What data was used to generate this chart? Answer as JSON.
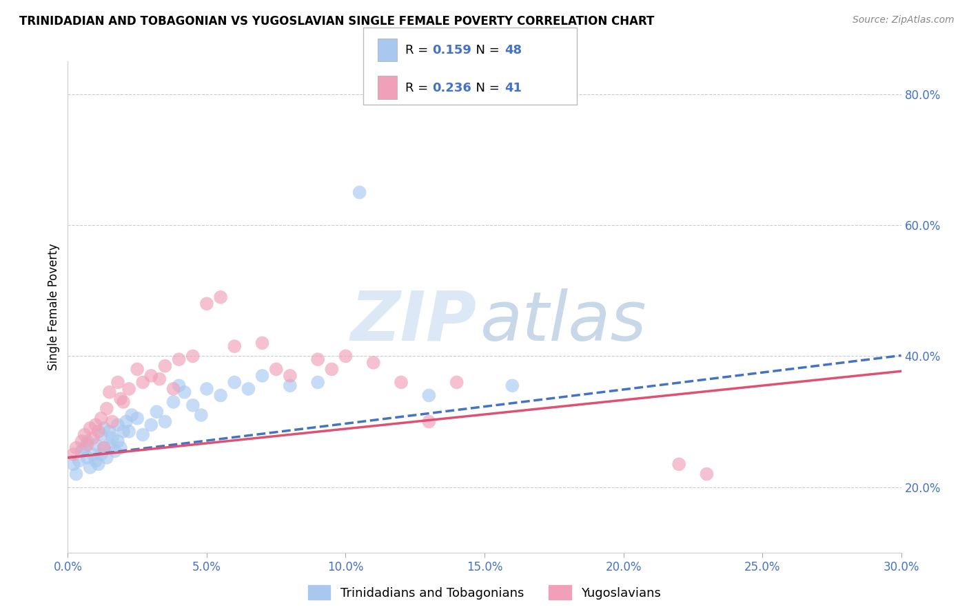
{
  "title": "TRINIDADIAN AND TOBAGONIAN VS YUGOSLAVIAN SINGLE FEMALE POVERTY CORRELATION CHART",
  "source": "Source: ZipAtlas.com",
  "ylabel": "Single Female Poverty",
  "xlim": [
    0.0,
    0.3
  ],
  "ylim": [
    0.1,
    0.85
  ],
  "xtick_labels": [
    "0.0%",
    "5.0%",
    "10.0%",
    "15.0%",
    "20.0%",
    "25.0%",
    "30.0%"
  ],
  "xtick_vals": [
    0.0,
    0.05,
    0.1,
    0.15,
    0.2,
    0.25,
    0.3
  ],
  "ytick_labels": [
    "20.0%",
    "40.0%",
    "60.0%",
    "80.0%"
  ],
  "ytick_vals": [
    0.2,
    0.4,
    0.6,
    0.8
  ],
  "blue_color": "#a8c8f0",
  "pink_color": "#f0a0b8",
  "blue_line_color": "#4472c4",
  "pink_line_color": "#e05070",
  "r_blue": 0.159,
  "n_blue": 48,
  "r_pink": 0.236,
  "n_pink": 41,
  "legend_label_blue": "Trinidadians and Tobagonians",
  "legend_label_pink": "Yugoslavians",
  "blue_scatter_x": [
    0.002,
    0.003,
    0.004,
    0.005,
    0.006,
    0.007,
    0.007,
    0.008,
    0.009,
    0.01,
    0.01,
    0.011,
    0.012,
    0.012,
    0.013,
    0.013,
    0.014,
    0.015,
    0.015,
    0.016,
    0.017,
    0.018,
    0.018,
    0.019,
    0.02,
    0.021,
    0.022,
    0.023,
    0.025,
    0.027,
    0.03,
    0.032,
    0.035,
    0.038,
    0.04,
    0.042,
    0.045,
    0.048,
    0.05,
    0.055,
    0.06,
    0.065,
    0.07,
    0.08,
    0.09,
    0.105,
    0.13,
    0.16
  ],
  "blue_scatter_y": [
    0.235,
    0.22,
    0.24,
    0.255,
    0.26,
    0.245,
    0.27,
    0.23,
    0.25,
    0.24,
    0.265,
    0.235,
    0.25,
    0.28,
    0.26,
    0.29,
    0.245,
    0.265,
    0.285,
    0.275,
    0.255,
    0.27,
    0.295,
    0.26,
    0.285,
    0.3,
    0.285,
    0.31,
    0.305,
    0.28,
    0.295,
    0.315,
    0.3,
    0.33,
    0.355,
    0.345,
    0.325,
    0.31,
    0.35,
    0.34,
    0.36,
    0.35,
    0.37,
    0.355,
    0.36,
    0.65,
    0.34,
    0.355
  ],
  "pink_scatter_x": [
    0.002,
    0.003,
    0.005,
    0.006,
    0.007,
    0.008,
    0.009,
    0.01,
    0.011,
    0.012,
    0.013,
    0.014,
    0.015,
    0.016,
    0.018,
    0.019,
    0.02,
    0.022,
    0.025,
    0.027,
    0.03,
    0.033,
    0.035,
    0.038,
    0.04,
    0.045,
    0.05,
    0.055,
    0.06,
    0.07,
    0.075,
    0.08,
    0.09,
    0.095,
    0.1,
    0.11,
    0.12,
    0.13,
    0.14,
    0.22,
    0.23
  ],
  "pink_scatter_y": [
    0.25,
    0.26,
    0.27,
    0.28,
    0.265,
    0.29,
    0.275,
    0.295,
    0.285,
    0.305,
    0.26,
    0.32,
    0.345,
    0.3,
    0.36,
    0.335,
    0.33,
    0.35,
    0.38,
    0.36,
    0.37,
    0.365,
    0.385,
    0.35,
    0.395,
    0.4,
    0.48,
    0.49,
    0.415,
    0.42,
    0.38,
    0.37,
    0.395,
    0.38,
    0.4,
    0.39,
    0.36,
    0.3,
    0.36,
    0.235,
    0.22
  ]
}
